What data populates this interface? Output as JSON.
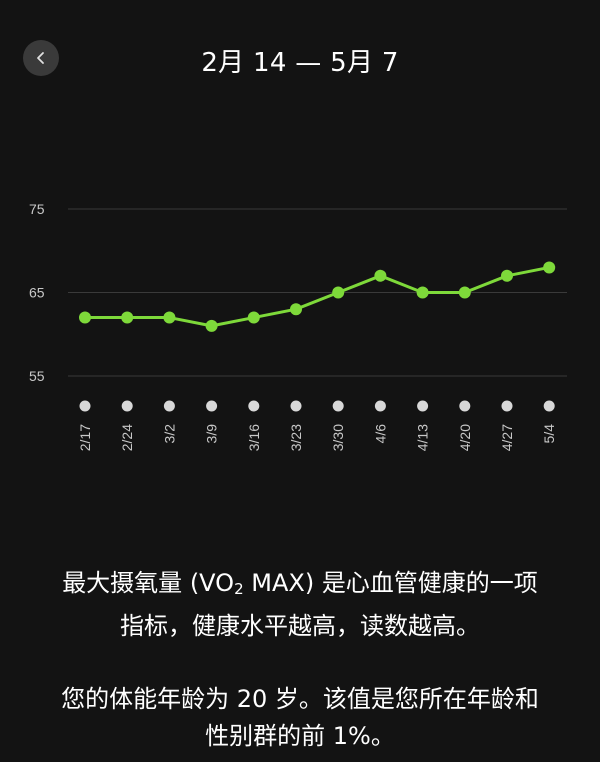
{
  "header": {
    "back_icon": "chevron-left-icon",
    "title": "2月 14 — 5月 7"
  },
  "colors": {
    "background": "#131313",
    "series": "#7ed93a",
    "grid": "#3a3a3a",
    "marker": "#d8d8d8"
  },
  "chart_data": {
    "type": "line",
    "title": "",
    "xlabel": "",
    "ylabel": "",
    "categories": [
      "2/17",
      "2/24",
      "3/2",
      "3/9",
      "3/16",
      "3/23",
      "3/30",
      "4/6",
      "4/13",
      "4/20",
      "4/27",
      "5/4"
    ],
    "series": [
      {
        "values": [
          62,
          62,
          62,
          61,
          62,
          63,
          65,
          67,
          65,
          65,
          67,
          68
        ]
      }
    ],
    "y_ticks": [
      "75",
      "65",
      "55"
    ],
    "ylim": [
      55,
      75
    ],
    "grid": true,
    "x_markers": true
  },
  "description": {
    "line1_pre": "最大摄氧量 (VO",
    "line1_sub": "2",
    "line1_post": " MAX) 是心血管健康的一项",
    "line2": "指标，健康水平越高，读数越高。",
    "line3": "您的体能年龄为 20 岁。该值是您所在年龄和",
    "line4": "性别群的前 1%。"
  }
}
